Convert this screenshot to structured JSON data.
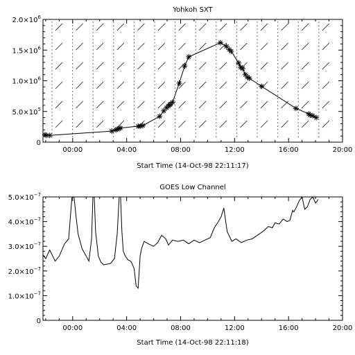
{
  "chart_data": [
    {
      "type": "scatter",
      "title": "Yohkoh SXT",
      "xlabel": "Start Time (14-Oct-98 22:11:17)",
      "ylabel": "",
      "x_unit": "hours after 14-Oct-98 22:11:17",
      "xlim": [
        -2.2,
        20.0
      ],
      "ylim": [
        0,
        2000000
      ],
      "x_ticks": [
        "00:00",
        "04:00",
        "08:00",
        "12:00",
        "16:00",
        "20:00"
      ],
      "y_ticks": [
        {
          "value": 0,
          "mant": "0",
          "exp": ""
        },
        {
          "value": 500000,
          "mant": "5.0×10",
          "exp": "5"
        },
        {
          "value": 1000000,
          "mant": "1.0×10",
          "exp": "6"
        },
        {
          "value": 1500000,
          "mant": "1.5×10",
          "exp": "6"
        },
        {
          "value": 2000000,
          "mant": "2.0×10",
          "exp": "6"
        }
      ],
      "marker": "asterisk",
      "connected": true,
      "background_pattern": "hatched vertical bands",
      "x": [
        -2.05,
        -1.95,
        -1.7,
        2.9,
        3.2,
        3.3,
        3.45,
        3.55,
        4.85,
        5.0,
        5.2,
        6.45,
        6.75,
        6.95,
        7.1,
        7.2,
        7.25,
        7.4,
        7.9,
        8.3,
        8.6,
        10.95,
        11.4,
        11.6,
        11.75,
        12.3,
        12.45,
        12.6,
        12.8,
        12.95,
        13.1,
        14.0,
        16.55,
        17.5,
        17.6,
        17.8,
        18.05
      ],
      "y": [
        120000,
        110000,
        110000,
        180000,
        200000,
        210000,
        220000,
        230000,
        260000,
        260000,
        270000,
        420000,
        510000,
        560000,
        590000,
        610000,
        620000,
        650000,
        960000,
        1240000,
        1390000,
        1620000,
        1560000,
        1510000,
        1480000,
        1290000,
        1220000,
        1200000,
        1100000,
        1060000,
        1040000,
        910000,
        550000,
        460000,
        440000,
        430000,
        400000
      ]
    },
    {
      "type": "line",
      "title": "GOES Low Channel",
      "xlabel": "Start Time (14-Oct-98 22:11:18)",
      "ylabel": "",
      "x_unit": "hours after 14-Oct-98 22:11:18",
      "xlim": [
        -2.2,
        20.0
      ],
      "ylim": [
        0,
        5e-07
      ],
      "x_ticks": [
        "00:00",
        "04:00",
        "08:00",
        "12:00",
        "16:00",
        "20:00"
      ],
      "y_ticks": [
        {
          "value": 0,
          "mant": "0",
          "exp": ""
        },
        {
          "value": 1e-07,
          "mant": "1.0×10",
          "exp": "−7"
        },
        {
          "value": 2e-07,
          "mant": "2.0×10",
          "exp": "−7"
        },
        {
          "value": 3e-07,
          "mant": "3.0×10",
          "exp": "−7"
        },
        {
          "value": 4e-07,
          "mant": "4.0×10",
          "exp": "−7"
        },
        {
          "value": 5e-07,
          "mant": "5.0×10",
          "exp": "−7"
        }
      ],
      "x": [
        -2.2,
        -2.0,
        -1.7,
        -1.3,
        -1.0,
        -0.6,
        -0.3,
        -0.05,
        0.1,
        0.25,
        0.4,
        0.7,
        1.0,
        1.2,
        1.4,
        1.5,
        1.6,
        1.7,
        1.9,
        2.1,
        2.3,
        2.8,
        3.1,
        3.3,
        3.45,
        3.55,
        3.65,
        3.75,
        3.9,
        4.1,
        4.3,
        4.4,
        4.55,
        4.7,
        4.85,
        5.0,
        5.1,
        5.3,
        5.6,
        6.0,
        6.3,
        6.6,
        6.9,
        7.1,
        7.4,
        7.8,
        8.2,
        8.6,
        9.0,
        9.4,
        9.8,
        10.2,
        10.5,
        10.8,
        11.0,
        11.2,
        11.45,
        11.8,
        12.1,
        12.5,
        12.9,
        13.3,
        13.7,
        14.1,
        14.5,
        14.8,
        15.0,
        15.3,
        15.6,
        15.9,
        16.1,
        16.3,
        16.4,
        16.6,
        16.8,
        17.0,
        17.2,
        17.4,
        17.6,
        17.8,
        18.0,
        18.2
      ],
      "y": [
        2.65e-07,
        2.5e-07,
        2.85e-07,
        2.4e-07,
        2.6e-07,
        3.1e-07,
        3.3e-07,
        5e-07,
        5e-07,
        4.2e-07,
        3.5e-07,
        2.9e-07,
        2.6e-07,
        2.4e-07,
        3.3e-07,
        5e-07,
        5e-07,
        3.6e-07,
        2.6e-07,
        2.35e-07,
        2.25e-07,
        2.3e-07,
        2.5e-07,
        3.5e-07,
        5e-07,
        5e-07,
        3.6e-07,
        2.8e-07,
        2.6e-07,
        2.45e-07,
        2.4e-07,
        2.3e-07,
        2.1e-07,
        1.4e-07,
        1.3e-07,
        2.6e-07,
        2.9e-07,
        3.2e-07,
        3.1e-07,
        3e-07,
        3.15e-07,
        3.45e-07,
        3.3e-07,
        3.05e-07,
        3.25e-07,
        3.2e-07,
        3.25e-07,
        3.1e-07,
        3.25e-07,
        3.15e-07,
        3.25e-07,
        3.35e-07,
        3.75e-07,
        4e-07,
        4.2e-07,
        4.55e-07,
        3.6e-07,
        3.2e-07,
        3.3e-07,
        3.15e-07,
        3.25e-07,
        3.3e-07,
        3.45e-07,
        3.6e-07,
        3.8e-07,
        3.75e-07,
        3.95e-07,
        3.9e-07,
        4.1e-07,
        4e-07,
        4.05e-07,
        4.45e-07,
        4.4e-07,
        4.6e-07,
        4.85e-07,
        5e-07,
        4.5e-07,
        4.6e-07,
        4.9e-07,
        5e-07,
        4.75e-07,
        4.9e-07
      ]
    }
  ]
}
